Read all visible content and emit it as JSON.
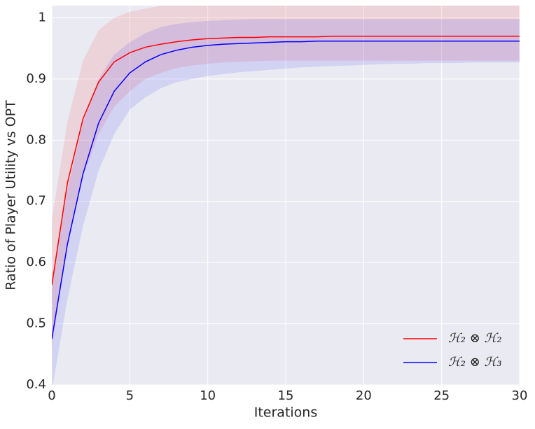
{
  "chart_data": {
    "type": "line",
    "xlabel": "Iterations",
    "ylabel": "Ratio of Player Utility vs OPT",
    "x": [
      0,
      1,
      2,
      3,
      4,
      5,
      6,
      7,
      8,
      9,
      10,
      11,
      12,
      13,
      14,
      15,
      16,
      17,
      18,
      19,
      20,
      21,
      22,
      23,
      24,
      25,
      26,
      27,
      28,
      29,
      30
    ],
    "xlim": [
      0,
      30
    ],
    "xticks": [
      0,
      5,
      10,
      15,
      20,
      25,
      30
    ],
    "ylim": [
      0.4,
      1.02
    ],
    "yticks": [
      0.4,
      0.5,
      0.6,
      0.7,
      0.8,
      0.9,
      1.0
    ],
    "grid": true,
    "legend": "lower right",
    "series": [
      {
        "name": "ℋ₂ ⊗ ℋ₂",
        "color": "#ff0000",
        "values": [
          0.563,
          0.73,
          0.835,
          0.895,
          0.928,
          0.943,
          0.952,
          0.957,
          0.961,
          0.964,
          0.966,
          0.967,
          0.968,
          0.968,
          0.969,
          0.969,
          0.969,
          0.969,
          0.97,
          0.97,
          0.97,
          0.97,
          0.97,
          0.97,
          0.97,
          0.97,
          0.97,
          0.97,
          0.97,
          0.97,
          0.97
        ],
        "upper": [
          0.67,
          0.83,
          0.93,
          0.98,
          1.0,
          1.01,
          1.015,
          1.02,
          1.025,
          1.03,
          1.03,
          1.03,
          1.03,
          1.03,
          1.03,
          1.03,
          1.03,
          1.03,
          1.03,
          1.03,
          1.03,
          1.03,
          1.03,
          1.03,
          1.03,
          1.03,
          1.03,
          1.03,
          1.03,
          1.03,
          1.03
        ],
        "lower": [
          0.46,
          0.63,
          0.74,
          0.81,
          0.855,
          0.88,
          0.9,
          0.91,
          0.918,
          0.922,
          0.925,
          0.927,
          0.928,
          0.929,
          0.93,
          0.93,
          0.93,
          0.93,
          0.93,
          0.93,
          0.93,
          0.93,
          0.93,
          0.93,
          0.93,
          0.93,
          0.93,
          0.93,
          0.93,
          0.93,
          0.93
        ]
      },
      {
        "name": "ℋ₂ ⊗ ℋ₃",
        "color": "#0000ff",
        "values": [
          0.475,
          0.63,
          0.745,
          0.828,
          0.88,
          0.91,
          0.928,
          0.94,
          0.947,
          0.952,
          0.955,
          0.957,
          0.958,
          0.959,
          0.96,
          0.961,
          0.961,
          0.962,
          0.962,
          0.962,
          0.962,
          0.962,
          0.962,
          0.962,
          0.962,
          0.962,
          0.962,
          0.962,
          0.962,
          0.962,
          0.962
        ],
        "upper": [
          0.56,
          0.72,
          0.83,
          0.9,
          0.94,
          0.96,
          0.975,
          0.985,
          0.99,
          0.993,
          0.995,
          0.996,
          0.997,
          0.998,
          0.998,
          0.998,
          0.998,
          0.998,
          0.998,
          0.998,
          0.998,
          0.998,
          0.998,
          0.998,
          0.998,
          0.998,
          0.998,
          0.998,
          0.998,
          0.998,
          0.998
        ],
        "lower": [
          0.39,
          0.54,
          0.66,
          0.75,
          0.81,
          0.85,
          0.87,
          0.885,
          0.895,
          0.9,
          0.905,
          0.908,
          0.911,
          0.913,
          0.915,
          0.917,
          0.919,
          0.92,
          0.921,
          0.922,
          0.923,
          0.924,
          0.925,
          0.925,
          0.926,
          0.926,
          0.926,
          0.927,
          0.927,
          0.927,
          0.927
        ]
      }
    ]
  }
}
